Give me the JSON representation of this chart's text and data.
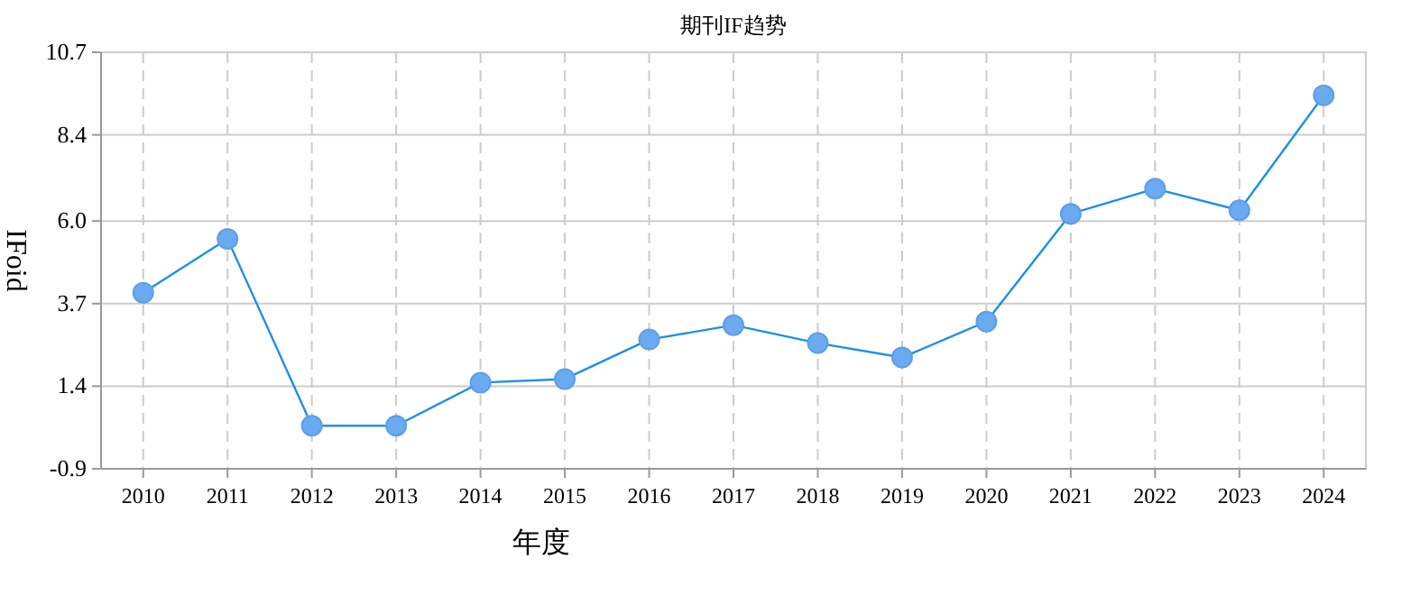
{
  "chart_data": {
    "type": "line",
    "title": "期刊IF趋势",
    "xlabel": "年度",
    "ylabel": "IFoid",
    "categories": [
      "2010",
      "2011",
      "2012",
      "2013",
      "2014",
      "2015",
      "2016",
      "2017",
      "2018",
      "2019",
      "2020",
      "2021",
      "2022",
      "2023",
      "2024"
    ],
    "series": [
      {
        "color": "#1e8fe8",
        "values": [
          4.0,
          5.5,
          0.3,
          0.3,
          1.5,
          1.6,
          2.7,
          3.1,
          2.6,
          2.2,
          3.2,
          6.2,
          6.9,
          6.3,
          9.5
        ]
      }
    ],
    "ylim": [
      -0.9,
      10.7
    ],
    "yticks": [
      -0.9,
      1.4,
      3.7,
      {
        "value": 6,
        "label": "6.0"
      },
      8.4,
      10.7
    ],
    "grid": true,
    "marker": "circle",
    "line_style": "solid"
  }
}
